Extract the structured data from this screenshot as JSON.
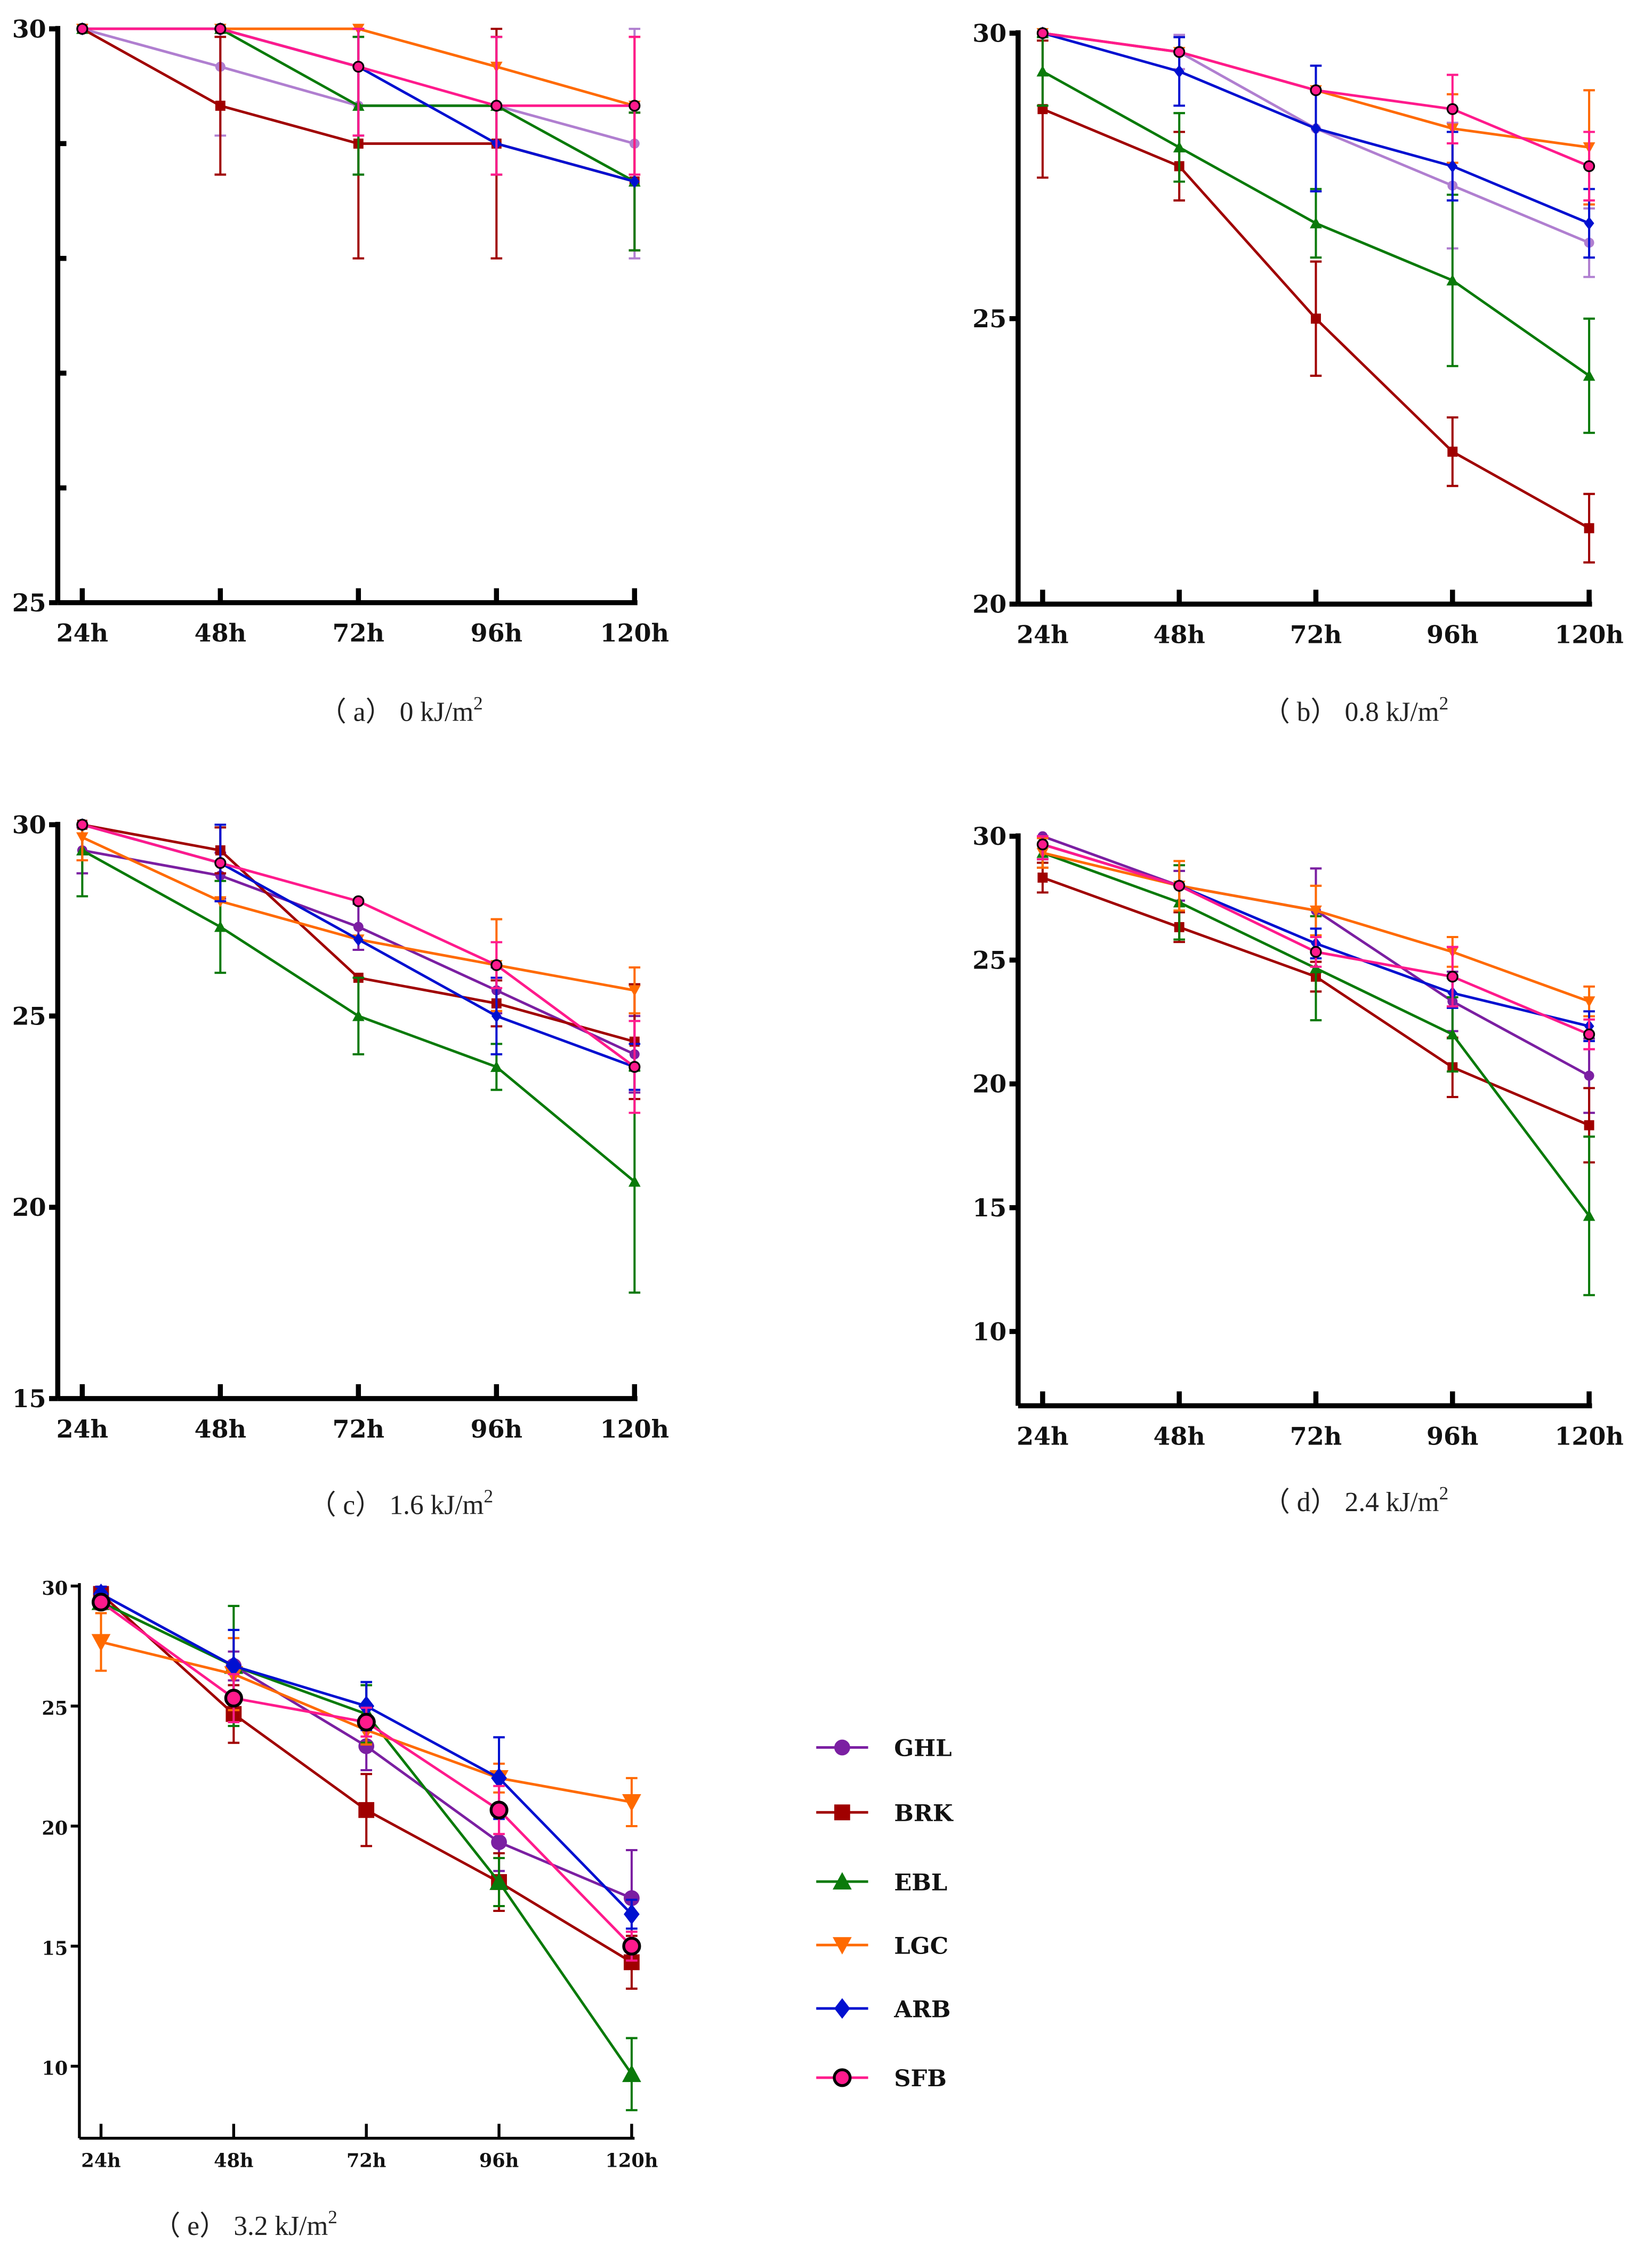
{
  "series_meta": [
    {
      "name": "GHL",
      "color": "#7b1fa2",
      "color_light": "#b07fd0",
      "marker": "circle"
    },
    {
      "name": "BRK",
      "color": "#a00000",
      "marker": "square"
    },
    {
      "name": "EBL",
      "color": "#0a7a0a",
      "marker": "triangle-up"
    },
    {
      "name": "LGC",
      "color": "#ff6a00",
      "marker": "triangle-down"
    },
    {
      "name": "ARB",
      "color": "#0010d0",
      "marker": "diamond"
    },
    {
      "name": "SFB",
      "color": "#ff1a8c",
      "marker": "circle-outlined"
    }
  ],
  "chart_data": [
    {
      "type": "line",
      "panel": "a",
      "caption": {
        "label": "（ a）",
        "text": "0 kJ/m",
        "sup": "2"
      },
      "categories": [
        "24h",
        "48h",
        "72h",
        "96h",
        "120h"
      ],
      "ylim": [
        25,
        30
      ],
      "yticks_labeled": [
        "30",
        "25"
      ],
      "yticks_minor": [
        26,
        27,
        28,
        29
      ],
      "series": [
        {
          "name": "GHL",
          "values": [
            30,
            29.67,
            29.33,
            29.33,
            29.0
          ],
          "err": [
            0,
            0.6,
            0.6,
            0.6,
            1.0
          ]
        },
        {
          "name": "BRK",
          "values": [
            30,
            29.33,
            29.0,
            29.0,
            28.67
          ],
          "err": [
            0,
            0.6,
            1.0,
            1.0,
            0.6
          ]
        },
        {
          "name": "EBL",
          "values": [
            30,
            30,
            29.33,
            29.33,
            28.67
          ],
          "err": [
            0,
            0,
            0.6,
            0.6,
            0.6
          ]
        },
        {
          "name": "LGC",
          "values": [
            30,
            30,
            30,
            29.67,
            29.33
          ],
          "err": [
            0,
            0,
            0,
            0,
            0.6
          ]
        },
        {
          "name": "ARB",
          "values": [
            30,
            30,
            29.67,
            29.0,
            28.67
          ],
          "err": [
            0,
            0,
            0.6,
            0,
            0
          ]
        },
        {
          "name": "SFB",
          "values": [
            30,
            30,
            29.67,
            29.33,
            29.33
          ],
          "err": [
            0,
            0,
            0.6,
            0.6,
            0.6
          ]
        }
      ]
    },
    {
      "type": "line",
      "panel": "b",
      "caption": {
        "label": "（ b）",
        "text": "0.8 kJ/m",
        "sup": "2"
      },
      "categories": [
        "24h",
        "48h",
        "72h",
        "96h",
        "120h"
      ],
      "ylim": [
        20,
        30
      ],
      "yticks_labeled": [
        "30",
        "25",
        "20"
      ],
      "yticks_minor": [],
      "series": [
        {
          "name": "GHL",
          "values": [
            30,
            29.67,
            28.33,
            27.33,
            26.33
          ],
          "err": [
            0,
            0.3,
            1.1,
            1.1,
            0.6
          ]
        },
        {
          "name": "BRK",
          "values": [
            28.67,
            27.67,
            25,
            22.67,
            21.33
          ],
          "err": [
            1.2,
            0.6,
            1.0,
            0.6,
            0.6
          ]
        },
        {
          "name": "EBL",
          "values": [
            29.33,
            28,
            26.67,
            25.67,
            24
          ],
          "err": [
            0.6,
            0.6,
            0.6,
            1.5,
            1.0
          ]
        },
        {
          "name": "LGC",
          "values": [
            30,
            29.67,
            29,
            28.33,
            28
          ],
          "err": [
            0,
            0,
            0,
            0.6,
            1.0
          ]
        },
        {
          "name": "ARB",
          "values": [
            30,
            29.33,
            28.33,
            27.67,
            26.67
          ],
          "err": [
            0,
            0.6,
            1.1,
            0.6,
            0.6
          ]
        },
        {
          "name": "SFB",
          "values": [
            30,
            29.67,
            29,
            28.67,
            27.67
          ],
          "err": [
            0,
            0,
            0,
            0.6,
            0.6
          ]
        }
      ]
    },
    {
      "type": "line",
      "panel": "c",
      "caption": {
        "label": "（ c）",
        "text": "1.6 kJ/m",
        "sup": "2"
      },
      "categories": [
        "24h",
        "48h",
        "72h",
        "96h",
        "120h"
      ],
      "ylim": [
        15,
        30
      ],
      "yticks_labeled": [
        "30",
        "25",
        "20",
        "15"
      ],
      "yticks_minor": [],
      "series": [
        {
          "name": "GHL",
          "values": [
            29.33,
            28.67,
            27.33,
            25.67,
            24
          ],
          "err": [
            0.6,
            0.6,
            0.6,
            0.6,
            1.0
          ]
        },
        {
          "name": "BRK",
          "values": [
            30,
            29.33,
            26,
            25.33,
            24.33
          ],
          "err": [
            0,
            0.6,
            0,
            0.6,
            1.5
          ]
        },
        {
          "name": "EBL",
          "values": [
            29.33,
            27.33,
            25,
            23.67,
            20.67
          ],
          "err": [
            1.2,
            1.2,
            1.0,
            0.6,
            2.9
          ]
        },
        {
          "name": "LGC",
          "values": [
            29.67,
            28,
            27,
            26.33,
            25.67
          ],
          "err": [
            0.6,
            0,
            0,
            1.2,
            0.6
          ]
        },
        {
          "name": "ARB",
          "values": [
            30,
            29,
            27,
            25,
            23.67
          ],
          "err": [
            0,
            1.0,
            0,
            1.0,
            0.6
          ]
        },
        {
          "name": "SFB",
          "values": [
            30,
            29,
            28,
            26.33,
            23.67
          ],
          "err": [
            0,
            0,
            0,
            0.6,
            1.2
          ]
        }
      ]
    },
    {
      "type": "line",
      "panel": "d",
      "caption": {
        "label": "（ d）",
        "text": "2.4 kJ/m",
        "sup": "2"
      },
      "categories": [
        "24h",
        "48h",
        "72h",
        "96h",
        "120h"
      ],
      "ylim": [
        7,
        30
      ],
      "yticks_labeled": [
        "30",
        "25",
        "20",
        "15",
        "10"
      ],
      "yticks_minor": [],
      "series": [
        {
          "name": "GHL",
          "values": [
            30,
            28,
            27,
            23.33,
            20.33
          ],
          "err": [
            0,
            0.6,
            1.7,
            1.2,
            1.5
          ]
        },
        {
          "name": "BRK",
          "values": [
            28.33,
            26.33,
            24.33,
            20.67,
            18.33
          ],
          "err": [
            0.6,
            0.6,
            0.6,
            1.2,
            1.5
          ]
        },
        {
          "name": "EBL",
          "values": [
            29.33,
            27.33,
            24.67,
            22,
            14.67
          ],
          "err": [
            0.6,
            1.5,
            2.1,
            1.5,
            3.2
          ]
        },
        {
          "name": "LGC",
          "values": [
            29.33,
            28,
            27,
            25.33,
            23.33
          ],
          "err": [
            0.6,
            1.0,
            1.0,
            0.6,
            0.6
          ]
        },
        {
          "name": "ARB",
          "values": [
            29.67,
            28,
            25.67,
            23.67,
            22.33
          ],
          "err": [
            0.6,
            0,
            0.6,
            0.6,
            0.6
          ]
        },
        {
          "name": "SFB",
          "values": [
            29.67,
            28,
            25.33,
            24.33,
            22
          ],
          "err": [
            0.6,
            0,
            0.6,
            1.2,
            0.6
          ]
        }
      ]
    },
    {
      "type": "line",
      "panel": "e",
      "caption": {
        "label": "（ e）",
        "text": "3.2 kJ/m",
        "sup": "2"
      },
      "categories": [
        "24h",
        "48h",
        "72h",
        "96h",
        "120h"
      ],
      "ylim": [
        7,
        30
      ],
      "yticks_labeled": [
        "30",
        "25",
        "20",
        "15",
        "10"
      ],
      "yticks_minor": [],
      "series": [
        {
          "name": "GHL",
          "values": [
            29.67,
            26.67,
            23.33,
            19.33,
            17
          ],
          "err": [
            0.3,
            0.6,
            1.0,
            1.2,
            2.0
          ]
        },
        {
          "name": "BRK",
          "values": [
            29.67,
            24.67,
            20.67,
            17.67,
            14.33
          ],
          "err": [
            0.3,
            1.2,
            1.5,
            1.2,
            1.1
          ]
        },
        {
          "name": "EBL",
          "values": [
            29.33,
            26.67,
            24.67,
            17.67,
            9.67
          ],
          "err": [
            0.3,
            2.5,
            1.2,
            1.0,
            1.5
          ]
        },
        {
          "name": "LGC",
          "values": [
            27.67,
            26.33,
            24,
            22,
            21
          ],
          "err": [
            1.2,
            1.5,
            0.6,
            0.6,
            1.0
          ]
        },
        {
          "name": "ARB",
          "values": [
            29.67,
            26.67,
            25,
            22,
            16.33
          ],
          "err": [
            0.3,
            1.5,
            1.0,
            1.7,
            0.6
          ]
        },
        {
          "name": "SFB",
          "values": [
            29.33,
            25.33,
            24.33,
            20.67,
            15
          ],
          "err": [
            0.3,
            1.0,
            0.6,
            1.0,
            0.6
          ]
        }
      ]
    }
  ],
  "legend": {
    "placement": "right-of-panel-e",
    "items": [
      "GHL",
      "BRK",
      "EBL",
      "LGC",
      "ARB",
      "SFB"
    ]
  }
}
